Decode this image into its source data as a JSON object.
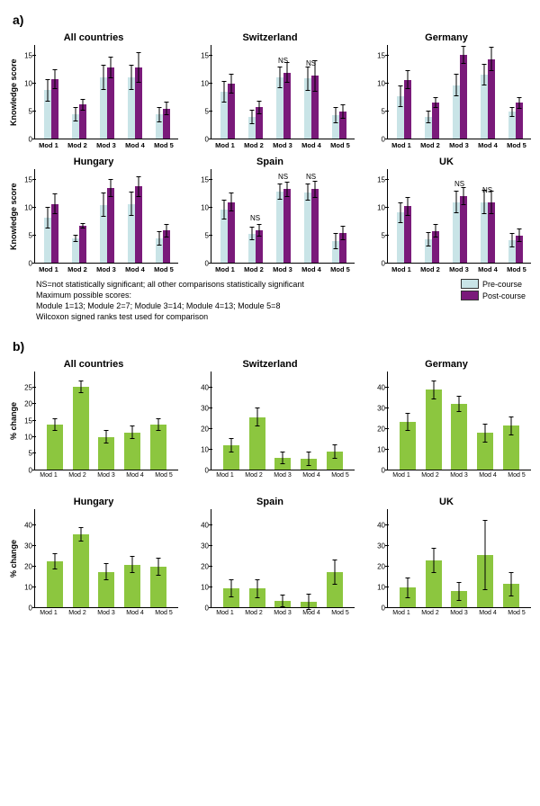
{
  "colors": {
    "pre": "#c9e4e7",
    "post": "#7a1a7a",
    "change": "#8cc63f",
    "err": "#000000"
  },
  "panelA": {
    "label": "a)",
    "ylabel": "Knowledge score",
    "ymax": 17,
    "yticks": [
      0,
      5,
      10,
      15
    ],
    "xlabels": [
      "Mod 1",
      "Mod 2",
      "Mod 3",
      "Mod 4",
      "Mod 5"
    ],
    "legend": [
      {
        "label": "Pre-course",
        "color": "#c9e4e7"
      },
      {
        "label": "Post-course",
        "color": "#7a1a7a"
      }
    ],
    "notes": [
      "NS=not statistically significant; all other comparisons statistically significant",
      "Maximum possible scores:",
      "Module 1=13; Module 2=7; Module 3=14; Module 4=13; Module 5=8",
      "Wilcoxon signed ranks test used for comparison"
    ],
    "charts": [
      {
        "title": "All countries",
        "groups": [
          {
            "pre": 8.7,
            "post": 10.7,
            "preErr": 2.0,
            "postErr": 1.8
          },
          {
            "pre": 4.4,
            "post": 6.1,
            "preErr": 1.3,
            "postErr": 1.1
          },
          {
            "pre": 11.0,
            "post": 12.8,
            "preErr": 2.2,
            "postErr": 2.0
          },
          {
            "pre": 11.0,
            "post": 12.8,
            "preErr": 2.2,
            "postErr": 2.8
          },
          {
            "pre": 4.3,
            "post": 5.4,
            "preErr": 1.4,
            "postErr": 1.2
          }
        ]
      },
      {
        "title": "Switzerland",
        "groups": [
          {
            "pre": 8.4,
            "post": 9.9,
            "preErr": 2.0,
            "postErr": 1.8
          },
          {
            "pre": 3.9,
            "post": 5.6,
            "preErr": 1.3,
            "postErr": 1.2
          },
          {
            "pre": 11.0,
            "post": 11.9,
            "preErr": 2.0,
            "postErr": 1.8,
            "ns": "NS"
          },
          {
            "pre": 10.8,
            "post": 11.3,
            "preErr": 2.2,
            "postErr": 2.8,
            "ns": "NS"
          },
          {
            "pre": 4.2,
            "post": 4.8,
            "preErr": 1.4,
            "postErr": 1.3
          }
        ]
      },
      {
        "title": "Germany",
        "groups": [
          {
            "pre": 7.6,
            "post": 10.6,
            "preErr": 1.9,
            "postErr": 1.7
          },
          {
            "pre": 3.9,
            "post": 6.5,
            "preErr": 1.2,
            "postErr": 1.0
          },
          {
            "pre": 9.6,
            "post": 15.0,
            "preErr": 2.0,
            "postErr": 1.6
          },
          {
            "pre": 11.5,
            "post": 14.3,
            "preErr": 2.0,
            "postErr": 2.2
          },
          {
            "pre": 4.8,
            "post": 6.4,
            "preErr": 0.9,
            "postErr": 1.0
          }
        ]
      },
      {
        "title": "Hungary",
        "groups": [
          {
            "pre": 8.1,
            "post": 10.6,
            "preErr": 1.9,
            "postErr": 1.8
          },
          {
            "pre": 4.4,
            "post": 6.7,
            "preErr": 0.7,
            "postErr": 0.5
          },
          {
            "pre": 10.4,
            "post": 13.4,
            "preErr": 2.2,
            "postErr": 1.6
          },
          {
            "pre": 10.6,
            "post": 13.7,
            "preErr": 2.2,
            "postErr": 1.8
          },
          {
            "pre": 4.4,
            "post": 5.8,
            "preErr": 1.3,
            "postErr": 1.2
          }
        ]
      },
      {
        "title": "Spain",
        "groups": [
          {
            "pre": 9.6,
            "post": 10.9,
            "preErr": 1.8,
            "postErr": 1.7
          },
          {
            "pre": 5.2,
            "post": 5.8,
            "preErr": 1.2,
            "postErr": 1.1,
            "ns": "NS"
          },
          {
            "pre": 12.8,
            "post": 13.2,
            "preErr": 1.5,
            "postErr": 1.4,
            "ns": "NS"
          },
          {
            "pre": 12.7,
            "post": 13.2,
            "preErr": 1.6,
            "postErr": 1.5,
            "ns": "NS"
          },
          {
            "pre": 3.9,
            "post": 5.3,
            "preErr": 1.4,
            "postErr": 1.3
          }
        ]
      },
      {
        "title": "UK",
        "groups": [
          {
            "pre": 9.0,
            "post": 10.2,
            "preErr": 1.8,
            "postErr": 1.7
          },
          {
            "pre": 4.2,
            "post": 5.7,
            "preErr": 1.3,
            "postErr": 1.2
          },
          {
            "pre": 10.9,
            "post": 12.0,
            "preErr": 2.0,
            "postErr": 1.6,
            "ns": "NS"
          },
          {
            "pre": 10.9,
            "post": 10.9,
            "preErr": 2.2,
            "postErr": 2.1,
            "ns": "NS"
          },
          {
            "pre": 4.0,
            "post": 4.9,
            "preErr": 1.3,
            "postErr": 1.2
          }
        ]
      }
    ]
  },
  "panelB": {
    "label": "b)",
    "ylabel": "% change",
    "xlabels": [
      "Mod 1",
      "Mod 2",
      "Mod 3",
      "Mod 4",
      "Mod 5"
    ],
    "charts": [
      {
        "title": "All countries",
        "ymax": 30,
        "yticks": [
          0,
          5,
          10,
          15,
          20,
          25
        ],
        "values": [
          {
            "v": 13.5,
            "e": 2.0
          },
          {
            "v": 25.0,
            "e": 2.0
          },
          {
            "v": 9.8,
            "e": 2.0
          },
          {
            "v": 11.2,
            "e": 2.0
          },
          {
            "v": 13.5,
            "e": 2.0
          }
        ]
      },
      {
        "title": "Switzerland",
        "ymax": 48,
        "yticks": [
          0,
          10,
          20,
          30,
          40
        ],
        "values": [
          {
            "v": 11.5,
            "e": 3.5
          },
          {
            "v": 25.3,
            "e": 4.5
          },
          {
            "v": 5.5,
            "e": 3.0
          },
          {
            "v": 5.0,
            "e": 3.5
          },
          {
            "v": 8.5,
            "e": 3.5
          }
        ]
      },
      {
        "title": "Germany",
        "ymax": 48,
        "yticks": [
          0,
          10,
          20,
          30,
          40
        ],
        "values": [
          {
            "v": 23.0,
            "e": 4.5
          },
          {
            "v": 38.5,
            "e": 4.5
          },
          {
            "v": 31.8,
            "e": 4.0
          },
          {
            "v": 17.5,
            "e": 4.5
          },
          {
            "v": 21.0,
            "e": 4.5
          }
        ]
      },
      {
        "title": "Hungary",
        "ymax": 48,
        "yticks": [
          0,
          10,
          20,
          30,
          40
        ],
        "values": [
          {
            "v": 22.0,
            "e": 4.0
          },
          {
            "v": 35.0,
            "e": 3.5
          },
          {
            "v": 17.0,
            "e": 4.0
          },
          {
            "v": 20.5,
            "e": 4.0
          },
          {
            "v": 19.5,
            "e": 4.5
          }
        ]
      },
      {
        "title": "Spain",
        "ymax": 48,
        "yticks": [
          0,
          10,
          20,
          30,
          40
        ],
        "values": [
          {
            "v": 9.0,
            "e": 4.5
          },
          {
            "v": 8.8,
            "e": 4.5
          },
          {
            "v": 2.8,
            "e": 3.0
          },
          {
            "v": 2.3,
            "e": 4.0
          },
          {
            "v": 16.8,
            "e": 6.0
          }
        ]
      },
      {
        "title": "UK",
        "ymax": 48,
        "yticks": [
          0,
          10,
          20,
          30,
          40
        ],
        "values": [
          {
            "v": 9.2,
            "e": 5.0
          },
          {
            "v": 22.5,
            "e": 6.0
          },
          {
            "v": 7.5,
            "e": 4.5
          },
          {
            "v": 25.0,
            "e": 17.0
          },
          {
            "v": 11.0,
            "e": 6.0
          }
        ]
      }
    ]
  }
}
